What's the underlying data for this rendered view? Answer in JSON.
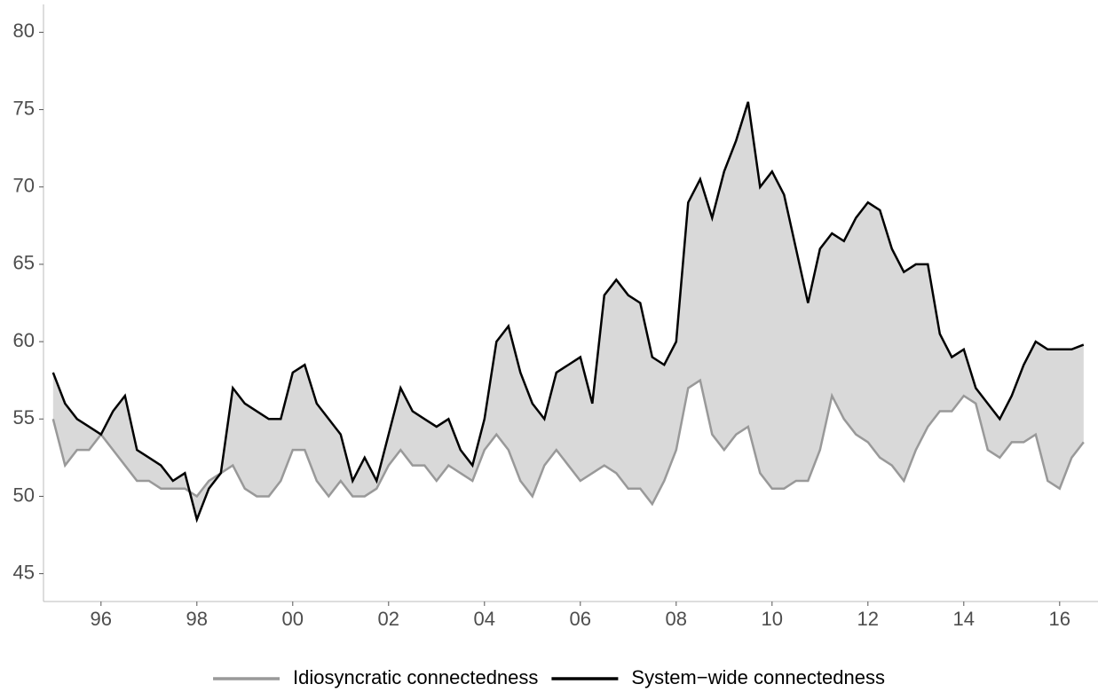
{
  "chart_data": {
    "type": "line",
    "x": [
      1995,
      1995.25,
      1995.5,
      1995.75,
      1996,
      1996.25,
      1996.5,
      1996.75,
      1997,
      1997.25,
      1997.5,
      1997.75,
      1998,
      1998.25,
      1998.5,
      1998.75,
      1999,
      1999.25,
      1999.5,
      1999.75,
      2000,
      2000.25,
      2000.5,
      2000.75,
      2001,
      2001.25,
      2001.5,
      2001.75,
      2002,
      2002.25,
      2002.5,
      2002.75,
      2003,
      2003.25,
      2003.5,
      2003.75,
      2004,
      2004.25,
      2004.5,
      2004.75,
      2005,
      2005.25,
      2005.5,
      2005.75,
      2006,
      2006.25,
      2006.5,
      2006.75,
      2007,
      2007.25,
      2007.5,
      2007.75,
      2008,
      2008.25,
      2008.5,
      2008.75,
      2009,
      2009.25,
      2009.5,
      2009.75,
      2010,
      2010.25,
      2010.5,
      2010.75,
      2011,
      2011.25,
      2011.5,
      2011.75,
      2012,
      2012.25,
      2012.5,
      2012.75,
      2013,
      2013.25,
      2013.5,
      2013.75,
      2014,
      2014.25,
      2014.5,
      2014.75,
      2015,
      2015.25,
      2015.5,
      2015.75,
      2016,
      2016.25,
      2016.5
    ],
    "series": [
      {
        "name": "Idiosyncratic connectedness",
        "color": "#999999",
        "values": [
          55,
          52,
          53,
          53,
          54,
          53,
          52,
          51,
          51,
          50.5,
          50.5,
          50.5,
          50,
          51,
          51.5,
          52,
          50.5,
          50,
          50,
          51,
          53,
          53,
          51,
          50,
          51,
          50,
          50,
          50.5,
          52,
          53,
          52,
          52,
          51,
          52,
          51.5,
          51,
          53,
          54,
          53,
          51,
          50,
          52,
          53,
          52,
          51,
          51.5,
          52,
          51.5,
          50.5,
          50.5,
          49.5,
          51,
          53,
          57,
          57.5,
          54,
          53,
          54,
          54.5,
          51.5,
          50.5,
          50.5,
          51,
          51,
          53,
          56.5,
          55,
          54,
          53.5,
          52.5,
          52,
          51,
          53,
          54.5,
          55.5,
          55.5,
          56.5,
          56,
          53,
          52.5,
          53.5,
          53.5,
          54,
          51,
          50.5,
          52.5,
          53.5
        ]
      },
      {
        "name": "System−wide connectedness",
        "color": "#000000",
        "values": [
          58,
          56,
          55,
          54.5,
          54,
          55.5,
          56.5,
          53,
          52.5,
          52,
          51,
          51.5,
          48.5,
          50.5,
          51.5,
          57,
          56,
          55.5,
          55,
          55,
          58,
          58.5,
          56,
          55,
          54,
          51,
          52.5,
          51,
          54,
          57,
          55.5,
          55,
          54.5,
          55,
          53,
          52,
          55,
          60,
          61,
          58,
          56,
          55,
          58,
          58.5,
          59,
          56,
          63,
          64,
          63,
          62.5,
          59,
          58.5,
          60,
          69,
          70.5,
          68,
          71,
          73,
          75.5,
          70,
          71,
          69.5,
          66,
          62.5,
          66,
          67,
          66.5,
          68,
          69,
          68.5,
          66,
          64.5,
          65,
          65,
          60.5,
          59,
          59.5,
          57,
          56,
          55,
          56.5,
          58.5,
          60,
          59.5,
          59.5,
          59.5,
          59.8
        ]
      }
    ],
    "fill_color": "#d9d9d9",
    "xlim": [
      1994.8,
      2016.8
    ],
    "xticks": [
      {
        "value": 1996,
        "label": "96"
      },
      {
        "value": 1998,
        "label": "98"
      },
      {
        "value": 2000,
        "label": "00"
      },
      {
        "value": 2002,
        "label": "02"
      },
      {
        "value": 2004,
        "label": "04"
      },
      {
        "value": 2006,
        "label": "06"
      },
      {
        "value": 2008,
        "label": "08"
      },
      {
        "value": 2010,
        "label": "10"
      },
      {
        "value": 2012,
        "label": "12"
      },
      {
        "value": 2014,
        "label": "14"
      },
      {
        "value": 2016,
        "label": "16"
      }
    ],
    "ylim": [
      43.2,
      81.8
    ],
    "yticks": [
      45,
      50,
      55,
      60,
      65,
      70,
      75,
      80
    ],
    "grid": false,
    "legend": "bottom"
  }
}
